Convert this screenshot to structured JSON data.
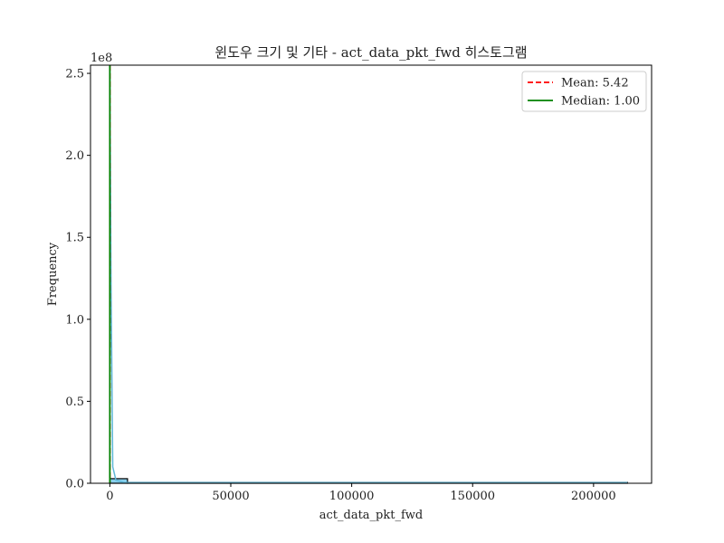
{
  "chart_data": {
    "type": "histogram",
    "title": "윈도우 크기 및 기타 - act_data_pkt_fwd 히스토그램",
    "xlabel": "act_data_pkt_fwd",
    "ylabel": "Frequency",
    "y_offset_label": "1e8",
    "xlim": [
      -8000,
      224000
    ],
    "ylim": [
      0,
      2.55
    ],
    "y_scale_multiplier": 100000000,
    "x_ticks": [
      0,
      50000,
      100000,
      150000,
      200000
    ],
    "x_tick_labels": [
      "0",
      "50000",
      "100000",
      "150000",
      "200000"
    ],
    "y_ticks": [
      0.0,
      0.5,
      1.0,
      1.5,
      2.0,
      2.5
    ],
    "y_tick_labels": [
      "0.0",
      "0.5",
      "1.0",
      "1.5",
      "2.0",
      "2.5"
    ],
    "bins": [
      {
        "x0": 0,
        "x1": 7300,
        "count": 0.028
      },
      {
        "x0": 7300,
        "x1": 214000,
        "count": 0.002
      }
    ],
    "kde_curve": {
      "x": [
        0,
        500,
        1200,
        2500,
        6000,
        214000
      ],
      "y": [
        2.55,
        1.2,
        0.1,
        0.02,
        0.004,
        0.004
      ]
    },
    "mean": 5.42,
    "median": 1.0,
    "legend": [
      {
        "label": "Mean: 5.42",
        "color": "#ff0000",
        "style": "dashed"
      },
      {
        "label": "Median: 1.00",
        "color": "#008000",
        "style": "solid"
      }
    ],
    "legend_position": "top-right",
    "grid": false,
    "colors": {
      "hist_edge": "#000000",
      "hist_fill": "#87ceeb",
      "kde": "#5fb8d8",
      "mean": "#ff0000",
      "median": "#008000"
    }
  }
}
